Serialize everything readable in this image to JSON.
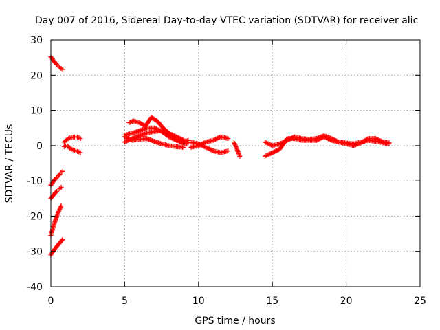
{
  "chart_data": {
    "type": "scatter",
    "title": "Day 007 of 2016, Sidereal Day-to-day VTEC variation (SDTVAR) for receiver alic",
    "xlabel": "GPS time / hours",
    "ylabel": "SDTVAR / TECUs",
    "xlim": [
      0,
      25
    ],
    "ylim": [
      -40,
      30
    ],
    "xticks": [
      0,
      5,
      10,
      15,
      20,
      25
    ],
    "yticks": [
      -40,
      -30,
      -20,
      -10,
      0,
      10,
      20,
      30
    ],
    "grid": true,
    "marker": "plus",
    "series_color": "#ff0000",
    "series": [
      {
        "x": [
          0.0,
          0.1,
          0.2,
          0.3,
          0.4,
          0.5,
          0.6,
          0.7,
          0.8
        ],
        "y": [
          25.2,
          24.6,
          24.0,
          23.5,
          23.0,
          22.6,
          22.2,
          21.9,
          21.6
        ]
      },
      {
        "x": [
          0.0,
          0.1,
          0.2,
          0.3,
          0.4,
          0.5,
          0.6,
          0.7,
          0.8
        ],
        "y": [
          -11.2,
          -10.6,
          -10.0,
          -9.5,
          -9.0,
          -8.6,
          -8.1,
          -7.7,
          -7.3
        ]
      },
      {
        "x": [
          0.0,
          0.1,
          0.2,
          0.3,
          0.4,
          0.5,
          0.6,
          0.7
        ],
        "y": [
          -15.0,
          -14.4,
          -13.9,
          -13.4,
          -13.0,
          -12.6,
          -12.2,
          -11.8
        ]
      },
      {
        "x": [
          0.0,
          0.1,
          0.2,
          0.3,
          0.4,
          0.5,
          0.6,
          0.7
        ],
        "y": [
          -25.5,
          -24.0,
          -22.6,
          -21.3,
          -20.1,
          -19.0,
          -18.0,
          -17.1
        ]
      },
      {
        "x": [
          0.0,
          0.1,
          0.2,
          0.3,
          0.4,
          0.5,
          0.6,
          0.7,
          0.8
        ],
        "y": [
          -31.0,
          -30.3,
          -29.7,
          -29.1,
          -28.6,
          -28.1,
          -27.6,
          -27.1,
          -26.6
        ]
      },
      {
        "x": [
          0.9,
          1.1,
          1.3,
          1.5,
          1.7,
          1.9,
          2.0
        ],
        "y": [
          1.0,
          1.8,
          2.2,
          2.4,
          2.5,
          2.3,
          2.0
        ]
      },
      {
        "x": [
          0.9,
          1.1,
          1.3,
          1.5,
          1.7,
          1.9,
          2.0
        ],
        "y": [
          -0.3,
          0.0,
          -0.8,
          -1.2,
          -1.5,
          -1.8,
          -2.0
        ]
      },
      {
        "x": [
          5.0,
          5.5,
          6.0,
          6.5,
          7.0,
          7.5,
          8.0,
          8.5,
          9.0,
          9.3
        ],
        "y": [
          1.0,
          2.0,
          2.8,
          3.5,
          4.0,
          4.2,
          3.5,
          2.5,
          1.5,
          0.8
        ]
      },
      {
        "x": [
          5.0,
          5.5,
          6.0,
          6.5,
          7.0,
          7.5,
          8.0,
          8.5,
          9.0,
          9.3
        ],
        "y": [
          3.0,
          3.5,
          4.2,
          5.0,
          5.0,
          4.0,
          2.5,
          1.5,
          1.0,
          1.5
        ]
      },
      {
        "x": [
          5.3,
          5.6,
          6.0,
          6.4,
          6.8,
          7.2,
          7.6,
          8.0,
          8.4,
          8.8,
          9.2
        ],
        "y": [
          6.5,
          7.0,
          6.5,
          5.5,
          8.0,
          7.0,
          5.0,
          3.5,
          2.0,
          1.0,
          0.5
        ]
      },
      {
        "x": [
          5.0,
          5.5,
          6.0,
          6.5,
          7.0,
          7.5,
          8.0,
          8.5,
          9.0
        ],
        "y": [
          2.5,
          1.5,
          1.8,
          2.0,
          1.2,
          0.5,
          0.0,
          -0.3,
          -0.5
        ]
      },
      {
        "x": [
          9.5,
          10.0,
          10.5,
          11.0,
          11.5,
          12.0
        ],
        "y": [
          1.0,
          0.5,
          -0.5,
          -1.5,
          -2.0,
          -1.5
        ]
      },
      {
        "x": [
          9.5,
          10.0,
          10.5,
          11.0,
          11.5,
          12.0
        ],
        "y": [
          -0.5,
          0.0,
          1.0,
          1.5,
          2.5,
          2.0
        ]
      },
      {
        "x": [
          12.4,
          12.6,
          12.8
        ],
        "y": [
          1.0,
          -1.0,
          -3.0
        ]
      },
      {
        "x": [
          14.5,
          15.0,
          15.5,
          16.0,
          16.5,
          17.0,
          17.5,
          18.0,
          18.5,
          19.0,
          19.5,
          20.0,
          20.5,
          21.0,
          21.5,
          22.0,
          22.5,
          22.9
        ],
        "y": [
          -3.0,
          -2.0,
          -1.0,
          2.0,
          2.0,
          1.5,
          1.5,
          1.5,
          2.5,
          1.5,
          1.0,
          0.8,
          0.5,
          1.0,
          1.5,
          1.2,
          0.8,
          0.5
        ]
      },
      {
        "x": [
          14.5,
          15.0,
          15.5,
          16.0,
          16.5,
          17.0,
          17.5,
          18.0,
          18.5,
          19.0,
          19.5,
          20.0,
          20.5,
          21.0,
          21.5,
          22.0,
          22.5,
          22.9
        ],
        "y": [
          1.0,
          0.0,
          0.5,
          1.5,
          2.5,
          2.0,
          1.8,
          2.0,
          2.8,
          2.0,
          1.0,
          0.5,
          0.0,
          0.8,
          2.0,
          2.0,
          1.0,
          0.8
        ]
      }
    ]
  }
}
